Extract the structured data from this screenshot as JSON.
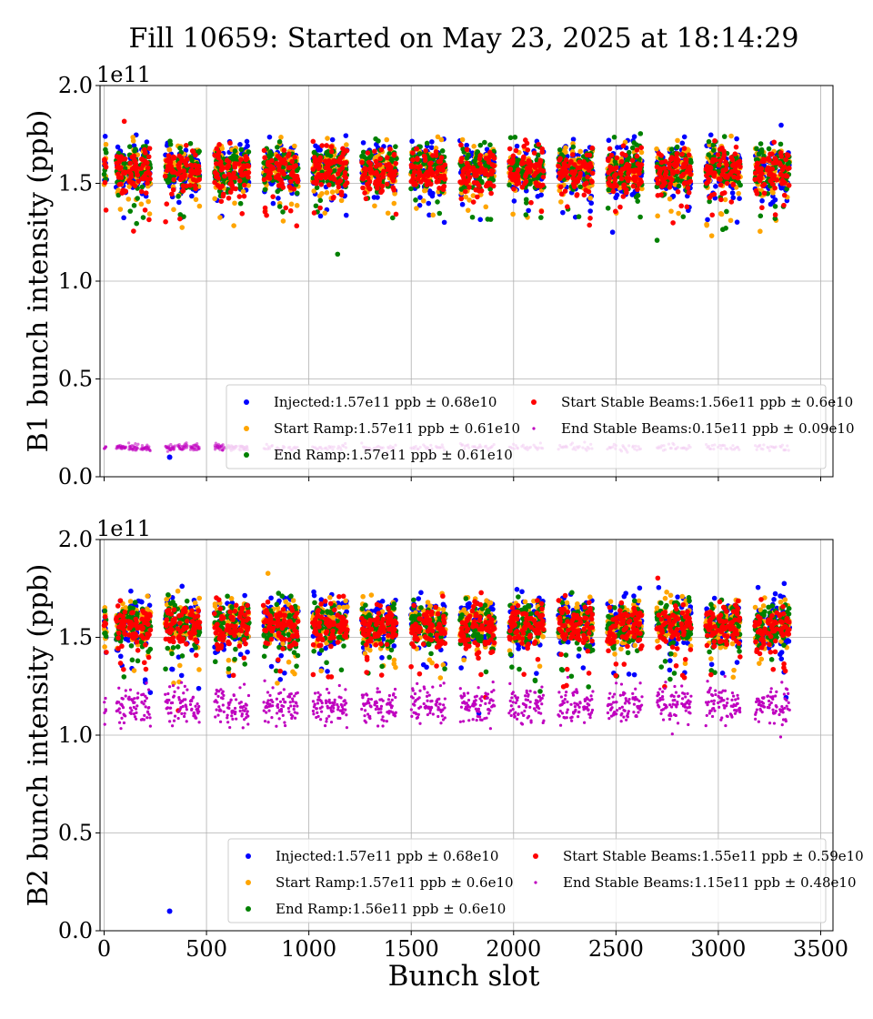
{
  "title": "Fill 10659: Started on May 23, 2025 at 18:14:29",
  "xlabel": "Bunch slot",
  "colors": {
    "Injected": "#0000ff",
    "Start Ramp": "#ffa500",
    "End Ramp": "#008000",
    "Start Stable Beams": "#ff0000",
    "End Stable Beams": "#bf00bf"
  },
  "chart_data": [
    {
      "type": "scatter",
      "panel": "B1",
      "ylabel": "B1 bunch intensity (ppb)",
      "offset_text": "1e11",
      "xlim": [
        -20,
        3560
      ],
      "ylim": [
        0.0,
        2.0
      ],
      "xticks": [
        0,
        500,
        1000,
        1500,
        2000,
        2500,
        3000,
        3500
      ],
      "yticks": [
        0.0,
        0.5,
        1.0,
        1.5,
        2.0
      ],
      "grid": true,
      "legend_position": "lower-right",
      "series": [
        {
          "name": "Injected",
          "label": "Injected:1.57e11 ppb ± 0.68e10",
          "color": "#0000ff",
          "mean": 1.57,
          "std": 0.068,
          "marker": "large",
          "outliers": [
            {
              "x": 320,
              "y": 0.1
            }
          ]
        },
        {
          "name": "Start Ramp",
          "label": "Start Ramp:1.57e11 ppb ± 0.61e10",
          "color": "#ffa500",
          "mean": 1.57,
          "std": 0.061,
          "marker": "large"
        },
        {
          "name": "End Ramp",
          "label": "End Ramp:1.57e11 ppb ± 0.61e10",
          "color": "#008000",
          "mean": 1.57,
          "std": 0.061,
          "marker": "large"
        },
        {
          "name": "Start Stable Beams",
          "label": "Start Stable Beams:1.56e11 ppb ± 0.6e10",
          "color": "#ff0000",
          "mean": 1.56,
          "std": 0.06,
          "marker": "large"
        },
        {
          "name": "End Stable Beams",
          "label": "End Stable Beams:0.15e11 ppb ± 0.09e10",
          "color": "#bf00bf",
          "mean": 0.15,
          "std": 0.009,
          "marker": "small"
        }
      ]
    },
    {
      "type": "scatter",
      "panel": "B2",
      "ylabel": "B2 bunch intensity (ppb)",
      "offset_text": "1e11",
      "xlabel": "Bunch slot",
      "xlim": [
        -20,
        3560
      ],
      "ylim": [
        0.0,
        2.0
      ],
      "xticks": [
        0,
        500,
        1000,
        1500,
        2000,
        2500,
        3000,
        3500
      ],
      "yticks": [
        0.0,
        0.5,
        1.0,
        1.5,
        2.0
      ],
      "grid": true,
      "legend_position": "lower-right",
      "series": [
        {
          "name": "Injected",
          "label": "Injected:1.57e11 ppb ± 0.68e10",
          "color": "#0000ff",
          "mean": 1.57,
          "std": 0.068,
          "marker": "large",
          "outliers": [
            {
              "x": 320,
              "y": 0.1
            }
          ]
        },
        {
          "name": "Start Ramp",
          "label": "Start Ramp:1.57e11 ppb ± 0.6e10",
          "color": "#ffa500",
          "mean": 1.57,
          "std": 0.06,
          "marker": "large"
        },
        {
          "name": "End Ramp",
          "label": "End Ramp:1.56e11 ppb ± 0.6e10",
          "color": "#008000",
          "mean": 1.56,
          "std": 0.06,
          "marker": "large"
        },
        {
          "name": "Start Stable Beams",
          "label": "Start Stable Beams:1.55e11 ppb ± 0.59e10",
          "color": "#ff0000",
          "mean": 1.55,
          "std": 0.059,
          "marker": "large"
        },
        {
          "name": "End Stable Beams",
          "label": "End Stable Beams:1.15e11 ppb ± 0.48e10",
          "color": "#bf00bf",
          "mean": 1.15,
          "std": 0.048,
          "marker": "small"
        }
      ]
    }
  ]
}
